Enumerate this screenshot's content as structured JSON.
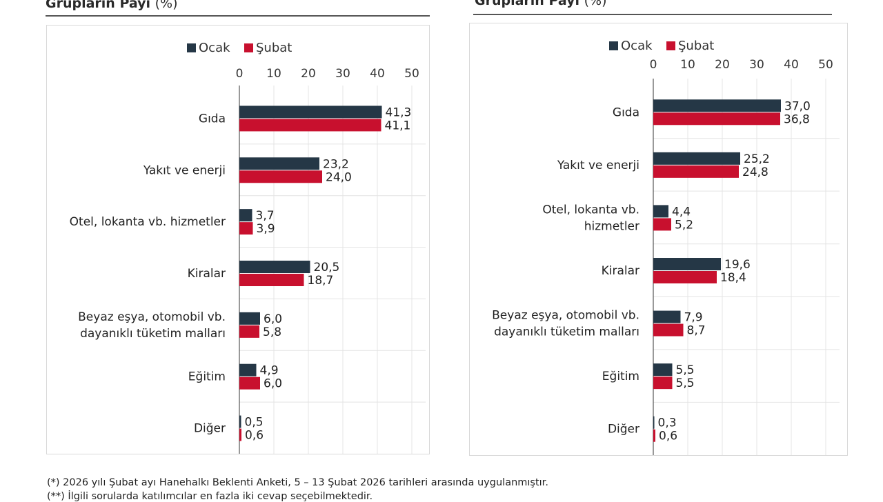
{
  "chart_data": [
    {
      "type": "bar",
      "orientation": "horizontal",
      "title": "Grupların Payı",
      "title_unit": "(%)",
      "categories": [
        "Gıda",
        "Yakıt ve enerji",
        "Otel, lokanta vb. hizmetler",
        "Kiralar",
        "Beyaz eşya, otomobil vb.\ndayanıklı tüketim malları",
        "Eğitim",
        "Diğer"
      ],
      "series": [
        {
          "name": "Ocak",
          "color": "#253746",
          "values": [
            41.3,
            23.2,
            3.7,
            20.5,
            6.0,
            4.9,
            0.5
          ],
          "labels": [
            "41,3",
            "23,2",
            "3,7",
            "20,5",
            "6,0",
            "4,9",
            "0,5"
          ]
        },
        {
          "name": "Şubat",
          "color": "#c8102e",
          "values": [
            41.1,
            24.0,
            3.9,
            18.7,
            5.8,
            6.0,
            0.6
          ],
          "labels": [
            "41,1",
            "24,0",
            "3,9",
            "18,7",
            "5,8",
            "6,0",
            "0,6"
          ]
        }
      ],
      "xlim": [
        0,
        50
      ],
      "xticks": [
        "0",
        "10",
        "20",
        "30",
        "40",
        "50"
      ],
      "legend": "top",
      "grid": true
    },
    {
      "type": "bar",
      "orientation": "horizontal",
      "title": "Grupların Payı",
      "title_unit": "(%)",
      "categories": [
        "Gıda",
        "Yakıt ve enerji",
        "Otel, lokanta vb.\nhizmetler",
        "Kiralar",
        "Beyaz eşya, otomobil vb.\ndayanıklı tüketim malları",
        "Eğitim",
        "Diğer"
      ],
      "series": [
        {
          "name": "Ocak",
          "color": "#253746",
          "values": [
            37.0,
            25.2,
            4.4,
            19.6,
            7.9,
            5.5,
            0.3
          ],
          "labels": [
            "37,0",
            "25,2",
            "4,4",
            "19,6",
            "7,9",
            "5,5",
            "0,3"
          ]
        },
        {
          "name": "Şubat",
          "color": "#c8102e",
          "values": [
            36.8,
            24.8,
            5.2,
            18.4,
            8.7,
            5.5,
            0.6
          ],
          "labels": [
            "36,8",
            "24,8",
            "5,2",
            "18,4",
            "8,7",
            "5,5",
            "0,6"
          ]
        }
      ],
      "xlim": [
        0,
        50
      ],
      "xticks": [
        "0",
        "10",
        "20",
        "30",
        "40",
        "50"
      ],
      "legend": "top",
      "grid": true
    }
  ],
  "footnotes": [
    "(*) 2026 yılı Şubat ayı Hanehalkı Beklenti Anketi, 5 – 13 Şubat 2026 tarihleri arasında uygulanmıştır.",
    "(**) İlgili sorularda katılımcılar en fazla iki cevap seçebilmektedir."
  ]
}
